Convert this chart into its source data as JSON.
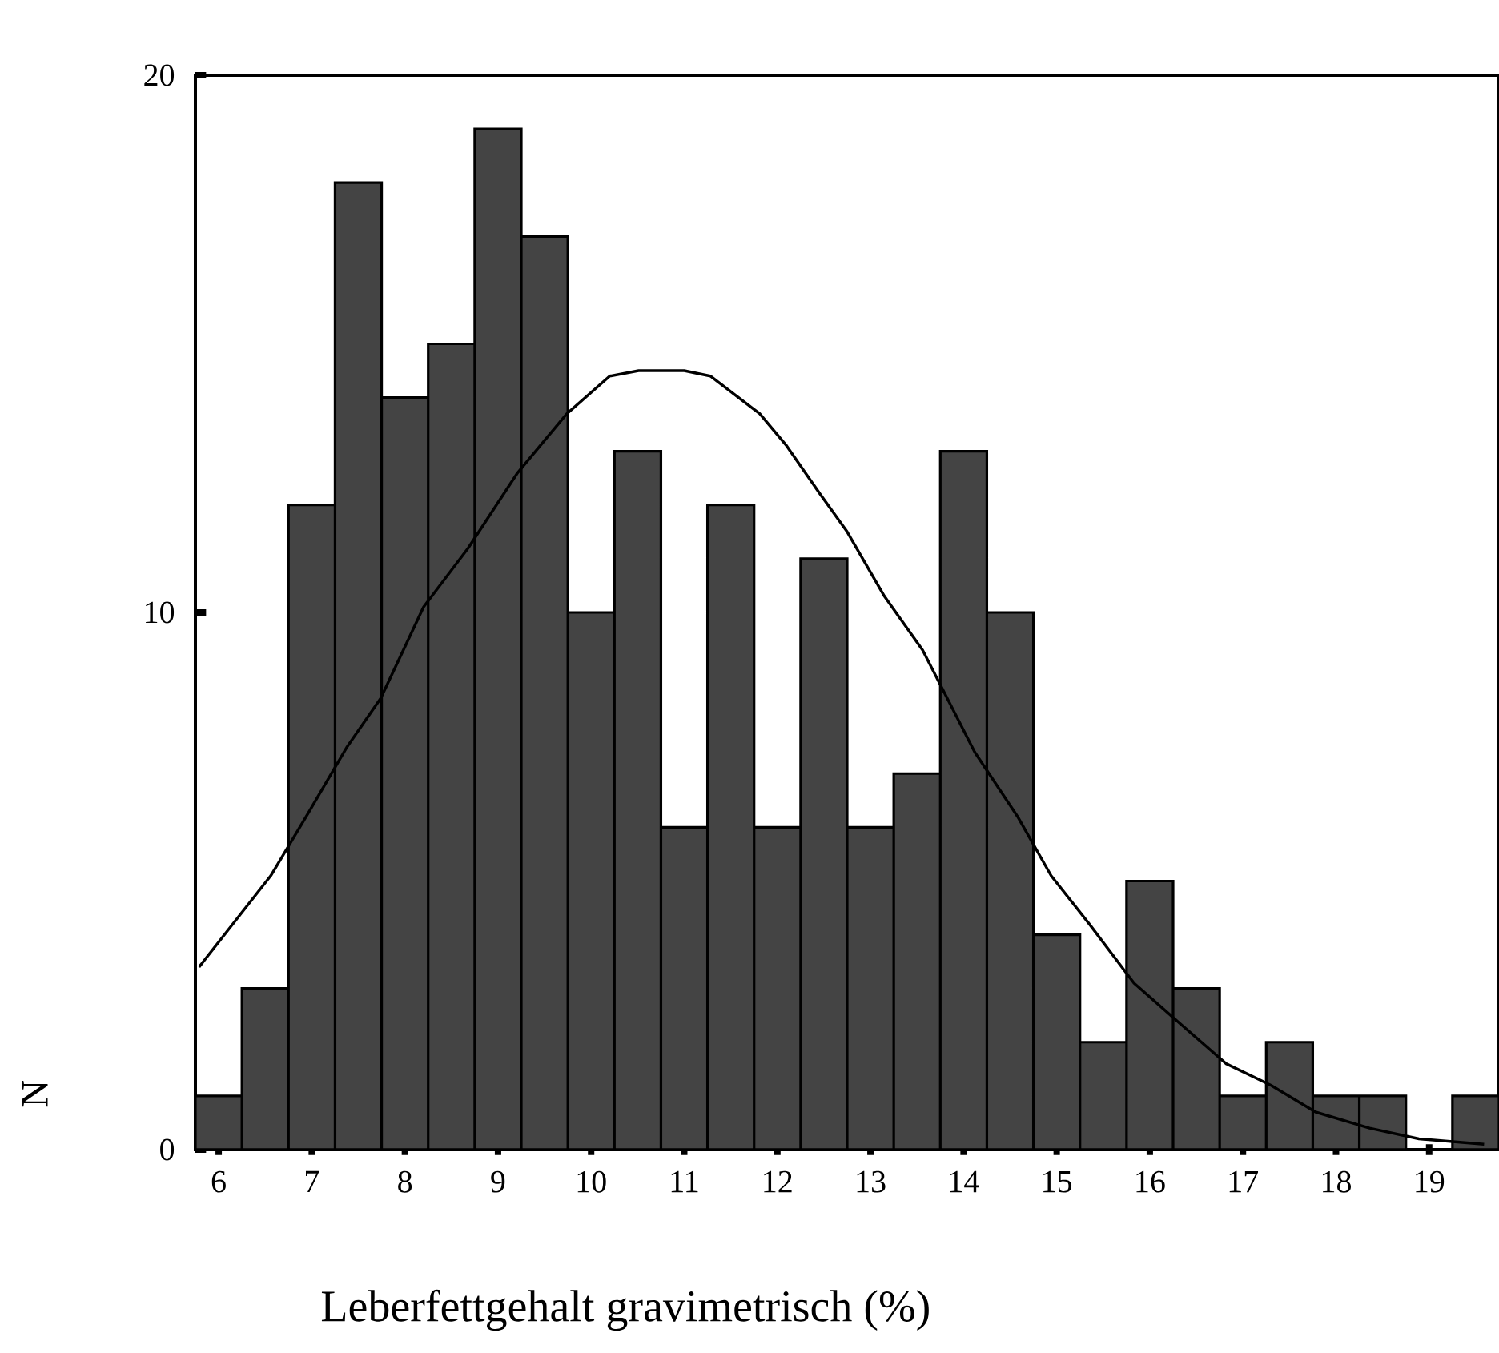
{
  "chart_data": {
    "type": "histogram",
    "xlabel": "Leberfettgehalt gravimetrisch (%)",
    "ylabel": "N",
    "bins": [
      5.75,
      6.25,
      6.75,
      7.25,
      7.75,
      8.25,
      8.75,
      9.25,
      9.75,
      10.25,
      10.75,
      11.25,
      11.75,
      12.25,
      12.75,
      13.25,
      13.75,
      14.25,
      14.75,
      15.25,
      15.75,
      16.25,
      16.75,
      17.25,
      17.75,
      18.25,
      18.75,
      19.25,
      19.75
    ],
    "values": [
      1,
      3,
      12,
      18,
      14,
      15,
      19,
      17,
      10,
      13,
      6,
      12,
      6,
      11,
      6,
      7,
      13,
      10,
      4,
      2,
      5,
      3,
      1,
      2,
      1,
      1,
      0,
      1
    ],
    "color": "#444444",
    "series": [
      {
        "type": "line",
        "color": "#000000",
        "x": [
          5.79,
          6.56,
          6.94,
          7.38,
          7.74,
          8.2,
          8.68,
          9.21,
          9.74,
          10.2,
          10.51,
          11.0,
          11.28,
          11.81,
          12.1,
          12.46,
          12.75,
          13.15,
          13.56,
          14.12,
          14.58,
          14.94,
          15.35,
          15.83,
          16.29,
          16.82,
          17.3,
          17.78,
          18.36,
          18.89,
          19.59
        ],
        "values": [
          3.4,
          5.1,
          6.2,
          7.5,
          8.4,
          10.1,
          11.2,
          12.6,
          13.7,
          14.4,
          14.5,
          14.5,
          14.4,
          13.7,
          13.1,
          12.2,
          11.5,
          10.3,
          9.3,
          7.4,
          6.2,
          5.1,
          4.2,
          3.1,
          2.4,
          1.6,
          1.2,
          0.7,
          0.4,
          0.2,
          0.1
        ]
      }
    ],
    "xlim": [
      5.75,
      19.75
    ],
    "ylim": [
      0,
      20
    ],
    "xticks": [
      6,
      7,
      8,
      9,
      10,
      11,
      12,
      13,
      14,
      15,
      16,
      17,
      18,
      19
    ],
    "yticks": [
      0,
      10,
      20
    ],
    "grid": false
  }
}
